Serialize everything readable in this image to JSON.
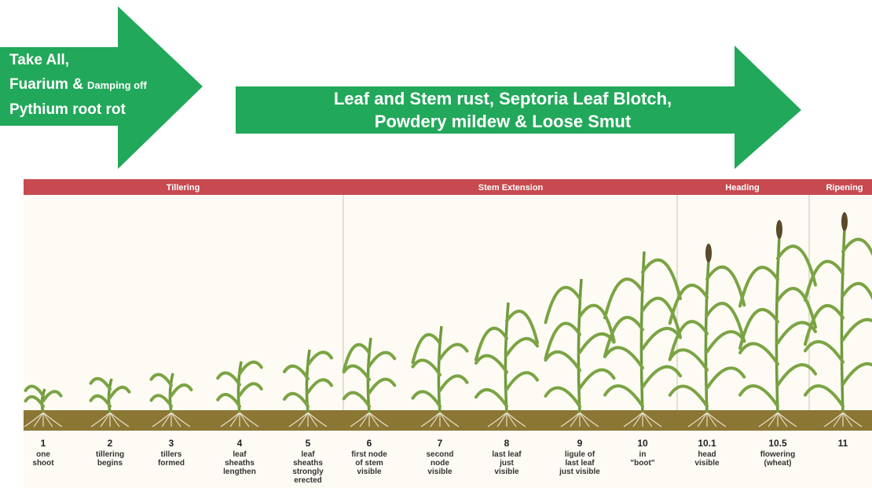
{
  "arrows": [
    {
      "lines": [
        [
          "Take All,"
        ],
        [
          "Fuarium &",
          "Damping off"
        ],
        [
          "Pythium root rot"
        ]
      ]
    },
    {
      "lines": [
        [
          "Leaf and Stem rust, Septoria Leaf Blotch,"
        ],
        [
          "Powdery mildew & Loose Smut"
        ]
      ]
    }
  ],
  "phases": [
    "Tillering",
    "Stem Extension",
    "Heading",
    "Ripening"
  ],
  "stages": [
    {
      "number": "1",
      "label": [
        "one",
        "shoot"
      ]
    },
    {
      "number": "2",
      "label": [
        "tillering",
        "begins"
      ]
    },
    {
      "number": "3",
      "label": [
        "tillers",
        "formed"
      ]
    },
    {
      "number": "4",
      "label": [
        "leaf",
        "sheaths",
        "lengthen"
      ]
    },
    {
      "number": "5",
      "label": [
        "leaf",
        "sheaths",
        "strongly",
        "erected"
      ]
    },
    {
      "number": "6",
      "label": [
        "first node",
        "of stem",
        "visible"
      ]
    },
    {
      "number": "7",
      "label": [
        "second",
        "node",
        "visible"
      ]
    },
    {
      "number": "8",
      "label": [
        "last leaf",
        "just",
        "visible"
      ]
    },
    {
      "number": "9",
      "label": [
        "ligule of",
        "last leaf",
        "just visible"
      ]
    },
    {
      "number": "10",
      "label": [
        "in",
        "\"boot\""
      ]
    },
    {
      "number": "10.1",
      "label": [
        "head",
        "visible"
      ]
    },
    {
      "number": "10.5",
      "label": [
        "flowering",
        "(wheat)"
      ]
    },
    {
      "number": "11",
      "label": []
    }
  ]
}
